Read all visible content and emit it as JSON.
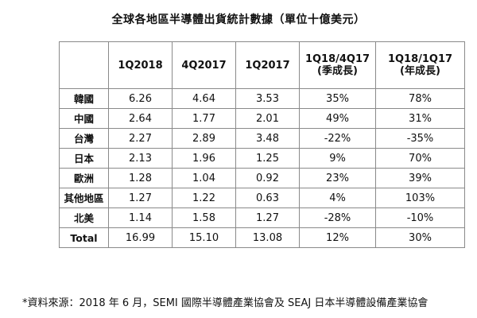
{
  "title": "全球各地區半導體出貨統計數據（單位十億美元）",
  "table": {
    "headers": [
      "",
      "1Q2018",
      "4Q2017",
      "1Q2017",
      "1Q18/4Q17\n(季成長)",
      "1Q18/1Q17\n(年成長)"
    ],
    "header_lines": [
      [
        ""
      ],
      [
        "1Q2018"
      ],
      [
        "4Q2017"
      ],
      [
        "1Q2017"
      ],
      [
        "1Q18/4Q17",
        "(季成長)"
      ],
      [
        "1Q18/1Q17",
        "(年成長)"
      ]
    ],
    "rows": [
      [
        "韓國",
        "6.26",
        "4.64",
        "3.53",
        "35%",
        "78%"
      ],
      [
        "中國",
        "2.64",
        "1.77",
        "2.01",
        "49%",
        "31%"
      ],
      [
        "台灣",
        "2.27",
        "2.89",
        "3.48",
        "-22%",
        "-35%"
      ],
      [
        "日本",
        "2.13",
        "1.96",
        "1.25",
        "9%",
        "70%"
      ],
      [
        "歐洲",
        "1.28",
        "1.04",
        "0.92",
        "23%",
        "39%"
      ],
      [
        "其他地區",
        "1.27",
        "1.22",
        "0.63",
        "4%",
        "103%"
      ],
      [
        "北美",
        "1.14",
        "1.58",
        "1.27",
        "-28%",
        "-10%"
      ],
      [
        "Total",
        "16.99",
        "15.10",
        "13.08",
        "12%",
        "30%"
      ]
    ]
  },
  "note": "*資料來源：2018 年 6 月，SEMI 國際半導體產業協會及 SEAJ 日本半導體設備產業協會"
}
